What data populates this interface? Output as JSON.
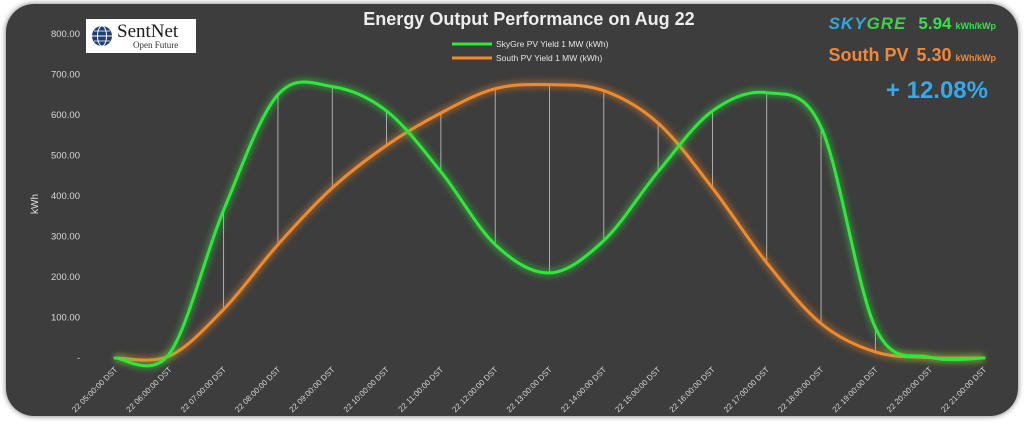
{
  "chart_data": {
    "type": "line",
    "title": "Energy Output Performance on Aug 22",
    "ylabel": "kWh",
    "xlabel": "",
    "ylim": [
      0,
      800
    ],
    "y_ticks": [
      "-",
      "100.00",
      "200.00",
      "300.00",
      "400.00",
      "500.00",
      "600.00",
      "700.00",
      "800.00"
    ],
    "categories": [
      "22 05:00:00 DST",
      "22 06:00:00 DST",
      "22 07:00:00 DST",
      "22 08:00:00 DST",
      "22 09:00:00 DST",
      "22 10:00:00 DST",
      "22 11:00:00 DST",
      "22 12:00:00 DST",
      "22 13:00:00 DST",
      "22 14:00:00 DST",
      "22 15:00:00 DST",
      "22 16:00:00 DST",
      "22 17:00:00 DST",
      "22 18:00:00 DST",
      "22 19:00:00 DST",
      "22 20:00:00 DST",
      "22 21:00:00 DST"
    ],
    "series": [
      {
        "name": "SkyGre PV Yield 1 MW (kWh)",
        "color": "#2ee83a",
        "values": [
          0,
          10,
          365,
          650,
          670,
          610,
          460,
          280,
          210,
          290,
          460,
          610,
          655,
          570,
          75,
          2,
          0
        ]
      },
      {
        "name": "South PV Yield 1 MW (kWh)",
        "color": "#f08a2c",
        "values": [
          0,
          5,
          120,
          280,
          420,
          525,
          605,
          665,
          675,
          660,
          580,
          420,
          235,
          85,
          15,
          1,
          0
        ]
      }
    ],
    "drop_lines": true,
    "grid": false,
    "legend": "top-center"
  },
  "logo": {
    "name": "SentNet",
    "tagline": "Open Future"
  },
  "kpis": {
    "skygre_brand": "SKYGRE",
    "skygre_value": "5.94",
    "skygre_unit": "kWh/kWp",
    "south_label": "South PV",
    "south_value": "5.30",
    "south_unit": "kWh/kWp",
    "improvement": "+ 12.08%"
  }
}
